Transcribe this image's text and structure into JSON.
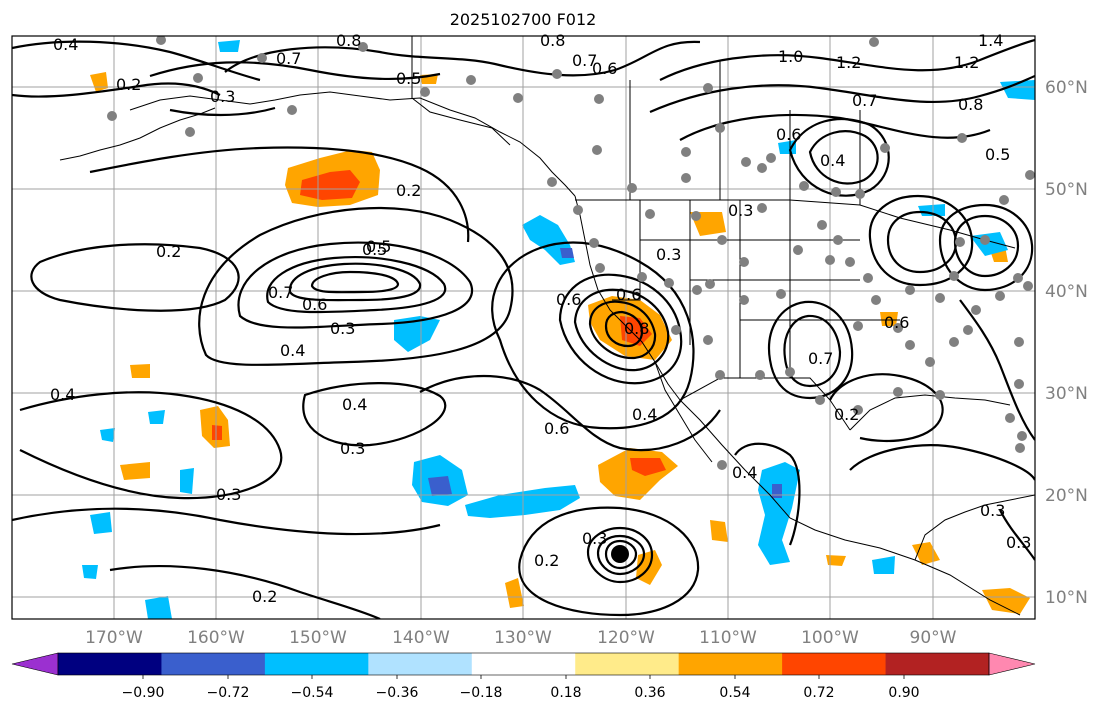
{
  "title": "2025102700 F012",
  "longitude_labels": [
    "170°W",
    "160°W",
    "150°W",
    "140°W",
    "130°W",
    "120°W",
    "110°W",
    "100°W",
    "90°W"
  ],
  "latitude_labels": [
    "60°N",
    "50°N",
    "40°N",
    "30°N",
    "20°N",
    "10°N"
  ],
  "colorbar": {
    "colors": [
      "#9b30d0",
      "#000080",
      "#3a5fcd",
      "#00bfff",
      "#b0e2ff",
      "#ffffff",
      "#ffeb8a",
      "#ffa500",
      "#ff4500",
      "#b22222",
      "#ff88b0"
    ],
    "tick_labels": [
      "−0.90",
      "−0.72",
      "−0.54",
      "−0.36",
      "−0.18",
      "0.18",
      "0.36",
      "0.54",
      "0.72",
      "0.90"
    ]
  },
  "contour_labels": [
    "0.4",
    "0.8",
    "0.8",
    "1.4",
    "0.7",
    "0.6",
    "0.7",
    "0.5",
    "1.0",
    "1.2",
    "1.2",
    "0.8",
    "0.3",
    "0.2",
    "0.5",
    "0.6",
    "0.7",
    "0.5",
    "0.4",
    "0.2",
    "0.2",
    "0.5",
    "0.3",
    "0.3",
    "0.6",
    "0.7",
    "0.6",
    "0.4",
    "0.3",
    "0.6",
    "0.8",
    "0.6",
    "0.7",
    "0.4",
    "0.4",
    "0.3",
    "0.6",
    "0.4",
    "0.3",
    "0.4",
    "0.2",
    "0.2",
    "0.2",
    "0.3",
    "0.3",
    "0.3"
  ],
  "colors": {
    "coast": "#000000",
    "grid": "#a0a0a0",
    "contour": "#000000",
    "station": "#808080",
    "cyclone_center": "#000000"
  }
}
